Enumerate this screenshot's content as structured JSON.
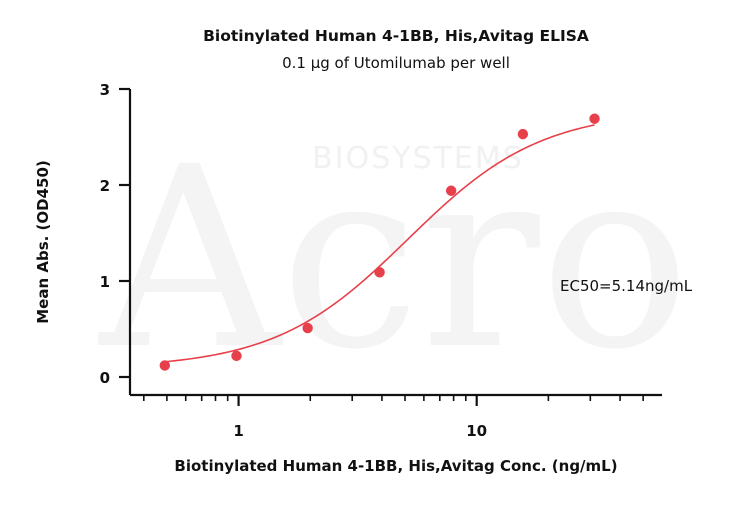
{
  "watermark": {
    "logo_text": "Acro",
    "brand_text": "BIOSYSTEMS"
  },
  "chart_data": {
    "type": "line",
    "title": "Biotinylated Human 4-1BB, His,Avitag ELISA",
    "subtitle": "0.1 μg of Utomilumab per well",
    "xlabel": "Biotinylated Human 4-1BB, His,Avitag Conc. (ng/mL)",
    "ylabel": "Mean Abs. (OD450)",
    "x_scale": "log",
    "xlim": [
      0.35,
      60
    ],
    "ylim": [
      0,
      3
    ],
    "x_ticks": [
      1,
      10
    ],
    "x_tick_labels": [
      "1",
      "10"
    ],
    "y_ticks": [
      0,
      1,
      2,
      3
    ],
    "y_tick_labels": [
      "0",
      "1",
      "2",
      "3"
    ],
    "grid": false,
    "annotation": "EC50=5.14ng/mL",
    "colors": {
      "series": "#e8404a",
      "axis": "#111111"
    },
    "series": [
      {
        "x": [
          0.49,
          0.98,
          1.95,
          3.91,
          7.81,
          15.63,
          31.25
        ],
        "y": [
          0.12,
          0.22,
          0.51,
          1.09,
          1.94,
          2.53,
          2.69
        ],
        "fit": {
          "model": "4PL",
          "bottom": 0.09,
          "top": 2.78,
          "ec50": 5.14,
          "hill": 1.55
        }
      }
    ]
  }
}
